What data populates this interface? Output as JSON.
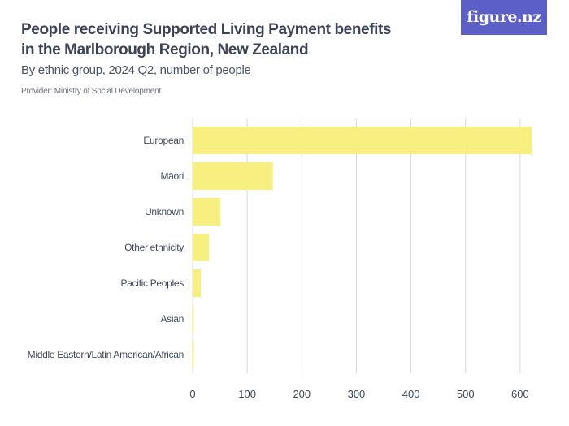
{
  "header": {
    "title": "People receiving Supported Living Payment benefits in the Marlborough Region, New Zealand",
    "subtitle": "By ethnic group, 2024 Q2, number of people",
    "provider": "Provider: Ministry of Social Development",
    "logo_text": "figure.nz"
  },
  "colors": {
    "bar": "#f7ef7f",
    "grid": "#d6d9de",
    "logo_bg": "#5b5fc7"
  },
  "chart_data": {
    "type": "bar",
    "orientation": "horizontal",
    "categories": [
      "European",
      "Māori",
      "Unknown",
      "Other ethnicity",
      "Pacific Peoples",
      "Asian",
      "Middle Eastern/Latin American/African"
    ],
    "values": [
      621,
      147,
      51,
      30,
      15,
      2,
      2
    ],
    "xlim": [
      0,
      650
    ],
    "xticks": [
      0,
      100,
      200,
      300,
      400,
      500,
      600
    ],
    "grid": true,
    "title": "People receiving Supported Living Payment benefits in the Marlborough Region, New Zealand",
    "subtitle": "By ethnic group, 2024 Q2, number of people"
  }
}
